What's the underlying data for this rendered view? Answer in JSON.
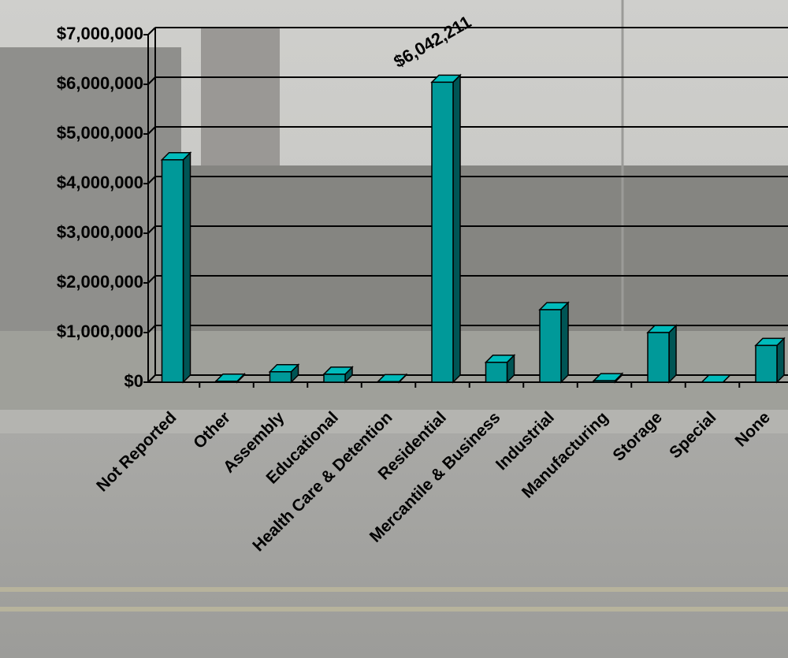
{
  "chart_data": {
    "type": "bar",
    "categories": [
      "Not Reported",
      "Other",
      "Assembly",
      "Educational",
      "Health Care & Detention",
      "Residential",
      "Mercantile & Business",
      "Industrial",
      "Manufacturing",
      "Storage",
      "Special",
      "None"
    ],
    "values": [
      4480000,
      20000,
      210000,
      160000,
      10000,
      6042211,
      400000,
      1460000,
      30000,
      1000000,
      0,
      740000
    ],
    "value_labels": [
      null,
      null,
      null,
      null,
      null,
      "$6,042,211",
      null,
      null,
      null,
      null,
      null,
      null
    ],
    "color": "#009999",
    "ylim": [
      0,
      7000000
    ],
    "yticks": [
      {
        "value": 0,
        "label": "$0"
      },
      {
        "value": 1000000,
        "label": "$1,000,000"
      },
      {
        "value": 2000000,
        "label": "$2,000,000"
      },
      {
        "value": 3000000,
        "label": "$3,000,000"
      },
      {
        "value": 4000000,
        "label": "$4,000,000"
      },
      {
        "value": 5000000,
        "label": "$5,000,000"
      },
      {
        "value": 6000000,
        "label": "$6,000,000"
      },
      {
        "value": 7000000,
        "label": "$7,000,000"
      }
    ],
    "grid": true
  }
}
